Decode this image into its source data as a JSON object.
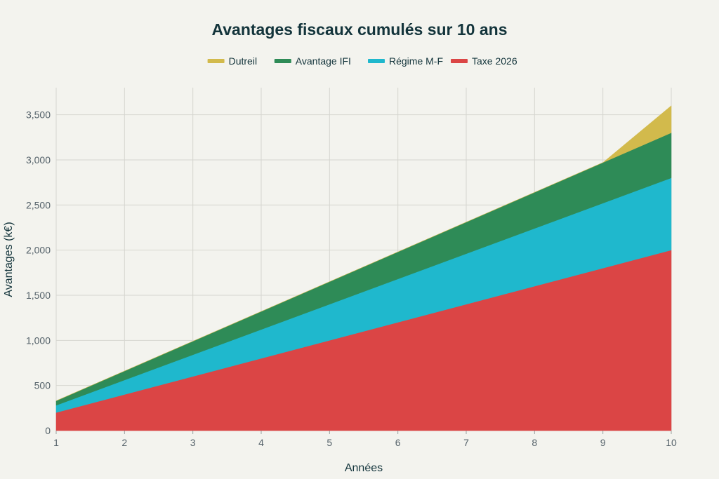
{
  "chart_data": {
    "type": "area",
    "stacked": true,
    "title": "Avantages fiscaux cumulés sur 10 ans",
    "xlabel": "Années",
    "ylabel": "Avantages (k€)",
    "x": [
      1,
      2,
      3,
      4,
      5,
      6,
      7,
      8,
      9,
      10
    ],
    "xlim": [
      1,
      10
    ],
    "ylim": [
      0,
      3800
    ],
    "x_ticks": [
      "1",
      "2",
      "3",
      "4",
      "5",
      "6",
      "7",
      "8",
      "9",
      "10"
    ],
    "y_ticks": [
      0,
      500,
      1000,
      1500,
      2000,
      2500,
      3000,
      3500
    ],
    "y_tick_labels": [
      "0",
      "500",
      "1,000",
      "1,500",
      "2,000",
      "2,500",
      "3,000",
      "3,500"
    ],
    "grid": true,
    "legend_position": "top-center",
    "series": [
      {
        "name": "Taxe 2026",
        "color": "#db4545",
        "values": [
          200,
          400,
          600,
          800,
          1000,
          1200,
          1400,
          1600,
          1800,
          2000
        ]
      },
      {
        "name": "Régime M-F",
        "color": "#1fb8cd",
        "values": [
          80,
          160,
          240,
          320,
          400,
          480,
          560,
          640,
          720,
          800
        ]
      },
      {
        "name": "Avantage IFI",
        "color": "#2e8b57",
        "values": [
          50,
          100,
          150,
          200,
          250,
          300,
          350,
          400,
          450,
          500
        ]
      },
      {
        "name": "Dutreil",
        "color": "#d2ba4c",
        "values": [
          0,
          0,
          0,
          0,
          0,
          0,
          0,
          0,
          0,
          300
        ]
      }
    ],
    "legend_order": [
      "Dutreil",
      "Avantage IFI",
      "Régime M-F",
      "Taxe 2026"
    ]
  }
}
